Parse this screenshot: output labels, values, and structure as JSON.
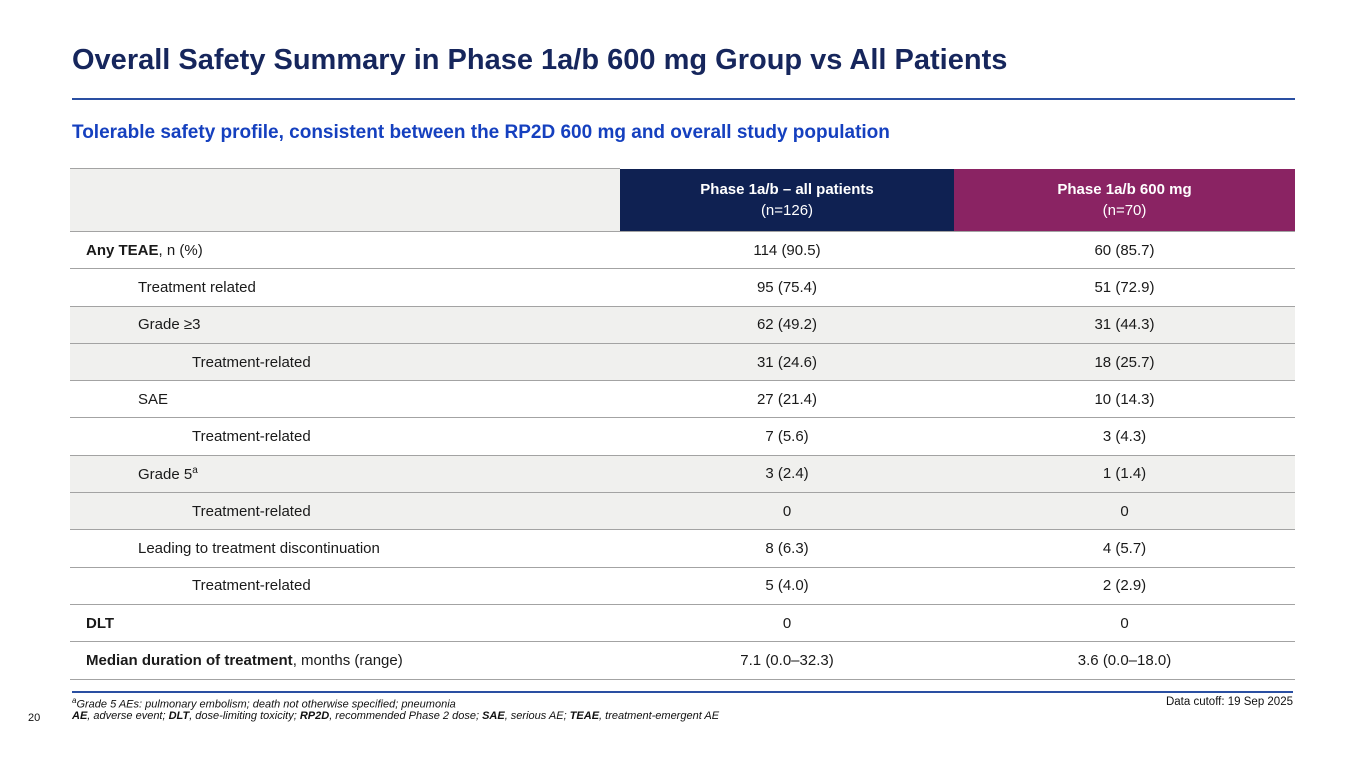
{
  "slide": {
    "title": "Overall Safety Summary in Phase 1a/b 600 mg Group vs All Patients",
    "subtitle": "Tolerable safety profile, consistent between the RP2D 600 mg and overall study population"
  },
  "colors": {
    "title_navy": "#16265C",
    "subtitle_blue": "#1540BF",
    "header_navy": "#0F2152",
    "header_purple": "#8A2363",
    "shaded_row_bg": "#F0F0EE",
    "row_border": "#A3A3A3",
    "rule_blue": "#2A4FA2"
  },
  "table": {
    "columns": [
      {
        "title": "Phase 1a/b – all patients",
        "n": "(n=126)"
      },
      {
        "title": "Phase 1a/b 600 mg",
        "n": "(n=70)"
      }
    ],
    "rows": [
      {
        "label_bold": "Any TEAE",
        "label": ", n (%)",
        "sup": "",
        "indent": 0,
        "shaded": false,
        "values": [
          "114 (90.5)",
          "60 (85.7)"
        ]
      },
      {
        "label_bold": "",
        "label": "Treatment related",
        "sup": "",
        "indent": 1,
        "shaded": false,
        "values": [
          "95 (75.4)",
          "51 (72.9)"
        ]
      },
      {
        "label_bold": "",
        "label": "Grade ≥3",
        "sup": "",
        "indent": 1,
        "shaded": true,
        "values": [
          "62 (49.2)",
          "31 (44.3)"
        ]
      },
      {
        "label_bold": "",
        "label": "Treatment-related",
        "sup": "",
        "indent": 2,
        "shaded": true,
        "values": [
          "31 (24.6)",
          "18 (25.7)"
        ]
      },
      {
        "label_bold": "",
        "label": "SAE",
        "sup": "",
        "indent": 1,
        "shaded": false,
        "values": [
          "27 (21.4)",
          "10 (14.3)"
        ]
      },
      {
        "label_bold": "",
        "label": "Treatment-related",
        "sup": "",
        "indent": 2,
        "shaded": false,
        "values": [
          "7 (5.6)",
          "3 (4.3)"
        ]
      },
      {
        "label_bold": "",
        "label": "Grade 5",
        "sup": "a",
        "indent": 1,
        "shaded": true,
        "values": [
          "3 (2.4)",
          "1 (1.4)"
        ]
      },
      {
        "label_bold": "",
        "label": "Treatment-related",
        "sup": "",
        "indent": 2,
        "shaded": true,
        "values": [
          "0",
          "0"
        ]
      },
      {
        "label_bold": "",
        "label": "Leading to treatment discontinuation",
        "sup": "",
        "indent": 1,
        "shaded": false,
        "values": [
          "8 (6.3)",
          "4 (5.7)"
        ]
      },
      {
        "label_bold": "",
        "label": "Treatment-related",
        "sup": "",
        "indent": 2,
        "shaded": false,
        "values": [
          "5 (4.0)",
          "2 (2.9)"
        ]
      },
      {
        "label_bold": "DLT",
        "label": "",
        "sup": "",
        "indent": 0,
        "shaded": false,
        "values": [
          "0",
          "0"
        ]
      },
      {
        "label_bold": "Median duration of treatment",
        "label": ", months (range)",
        "sup": "",
        "indent": 0,
        "shaded": false,
        "values": [
          "7.1 (0.0–32.3)",
          "3.6 (0.0–18.0)"
        ]
      }
    ]
  },
  "footnotes": {
    "line1_marker": "a",
    "line1": "Grade 5 AEs: pulmonary embolism; death not otherwise specified; pneumonia",
    "line2_segments": [
      {
        "text": "AE",
        "bold": true
      },
      {
        "text": ", adverse event; ",
        "bold": false
      },
      {
        "text": "DLT",
        "bold": true
      },
      {
        "text": ", dose-limiting toxicity; ",
        "bold": false
      },
      {
        "text": "RP2D",
        "bold": true
      },
      {
        "text": ", recommended Phase 2 dose; ",
        "bold": false
      },
      {
        "text": "SAE",
        "bold": true
      },
      {
        "text": ", serious AE; ",
        "bold": false
      },
      {
        "text": "TEAE",
        "bold": true
      },
      {
        "text": ", treatment-emergent AE",
        "bold": false
      }
    ]
  },
  "footer": {
    "data_cutoff": "Data cutoff: 19 Sep 2025",
    "page_number": "20"
  }
}
